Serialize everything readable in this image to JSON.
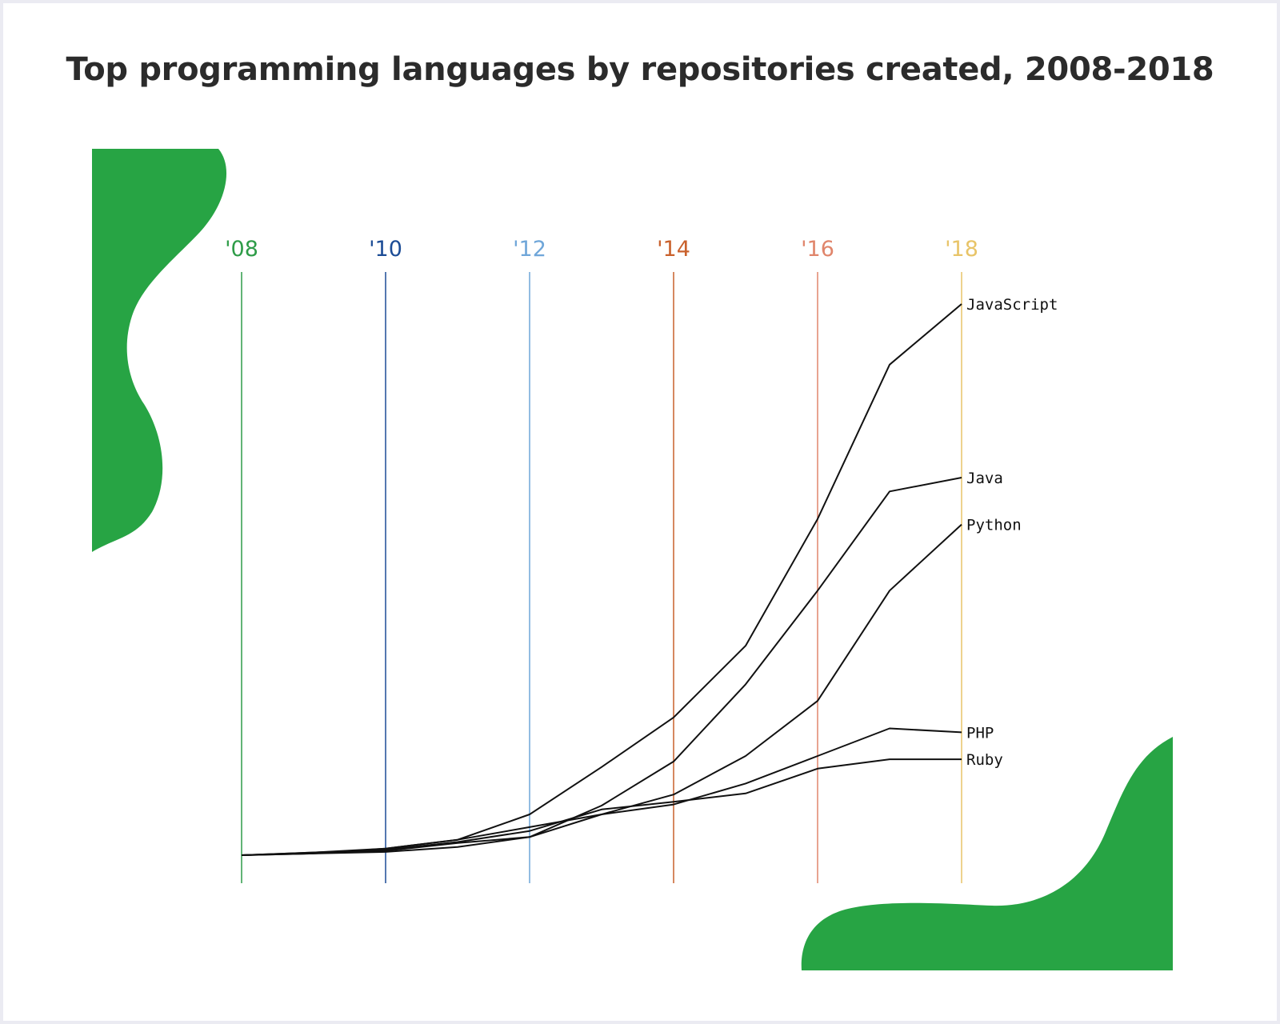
{
  "chart_data": {
    "type": "line",
    "title": "Top programming languages by repositories created, 2008-2018",
    "x": [
      2008,
      2009,
      2010,
      2011,
      2012,
      2013,
      2014,
      2015,
      2016,
      2017,
      2018
    ],
    "x_ticks": [
      {
        "value": 2008,
        "label": "'08",
        "color": "#2e9c48"
      },
      {
        "value": 2010,
        "label": "'10",
        "color": "#1c4c96"
      },
      {
        "value": 2012,
        "label": "'12",
        "color": "#6fa6d9"
      },
      {
        "value": 2014,
        "label": "'14",
        "color": "#c9612c"
      },
      {
        "value": 2016,
        "label": "'16",
        "color": "#e0856b"
      },
      {
        "value": 2018,
        "label": "'18",
        "color": "#e8c468"
      }
    ],
    "ylim": [
      0,
      100
    ],
    "grid": "vertical",
    "series": [
      {
        "name": "JavaScript",
        "values": [
          0,
          0.5,
          1.2,
          2.8,
          7.4,
          16,
          25,
          38,
          61,
          89,
          100
        ]
      },
      {
        "name": "Java",
        "values": [
          0,
          0.4,
          0.8,
          2.2,
          3.3,
          9,
          17,
          31,
          48,
          66,
          68.5
        ]
      },
      {
        "name": "Python",
        "values": [
          0,
          0.3,
          0.6,
          1.5,
          3.3,
          7.4,
          11,
          18,
          28,
          48,
          60
        ]
      },
      {
        "name": "PHP",
        "values": [
          0,
          0.3,
          1.2,
          2.8,
          5.1,
          7.4,
          9.2,
          13,
          18,
          23,
          22.3
        ]
      },
      {
        "name": "Ruby",
        "values": [
          0,
          0.5,
          1.0,
          2.4,
          4.4,
          8.3,
          9.7,
          11.2,
          15.7,
          17.4,
          17.4
        ]
      }
    ],
    "colors": {
      "line": "#111111",
      "accent_shape": "#27a444"
    }
  }
}
